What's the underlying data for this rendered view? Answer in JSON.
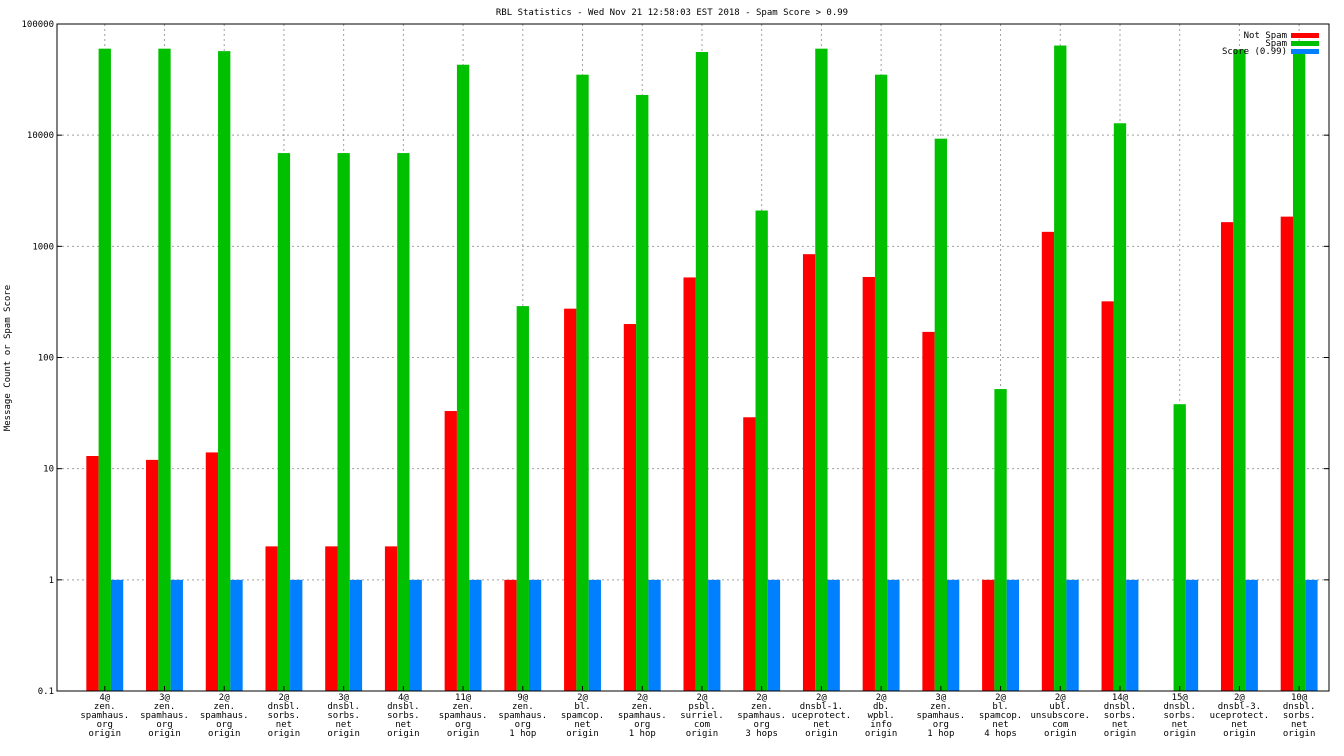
{
  "chart_data": {
    "type": "bar",
    "title": "RBL Statistics - Wed Nov 21 12:58:03 EST 2018 - Spam Score > 0.99",
    "ylabel": "Message Count or Spam Score",
    "xlabel": "",
    "yscale": "log",
    "ylim": [
      0.1,
      100000
    ],
    "y_ticks": [
      {
        "value": 0.1,
        "label": "0.1"
      },
      {
        "value": 1,
        "label": "1"
      },
      {
        "value": 10,
        "label": "10"
      },
      {
        "value": 100,
        "label": "100"
      },
      {
        "value": 1000,
        "label": "1000"
      },
      {
        "value": 10000,
        "label": "10000"
      },
      {
        "value": 100000,
        "label": "100000"
      }
    ],
    "grid": true,
    "legend_position": "top-right",
    "categories": [
      [
        "4@",
        "zen.",
        "spamhaus.",
        "org",
        "origin"
      ],
      [
        "3@",
        "zen.",
        "spamhaus.",
        "org",
        "origin"
      ],
      [
        "2@",
        "zen.",
        "spamhaus.",
        "org",
        "origin"
      ],
      [
        "2@",
        "dnsbl.",
        "sorbs.",
        "net",
        "origin"
      ],
      [
        "3@",
        "dnsbl.",
        "sorbs.",
        "net",
        "origin"
      ],
      [
        "4@",
        "dnsbl.",
        "sorbs.",
        "net",
        "origin"
      ],
      [
        "11@",
        "zen.",
        "spamhaus.",
        "org",
        "origin"
      ],
      [
        "9@",
        "zen.",
        "spamhaus.",
        "org",
        "1 hop"
      ],
      [
        "2@",
        "bl.",
        "spamcop.",
        "net",
        "origin"
      ],
      [
        "2@",
        "zen.",
        "spamhaus.",
        "org",
        "1 hop"
      ],
      [
        "2@",
        "psbl.",
        "surriel.",
        "com",
        "origin"
      ],
      [
        "2@",
        "zen.",
        "spamhaus.",
        "org",
        "3 hops"
      ],
      [
        "2@",
        "dnsbl-1.",
        "uceprotect.",
        "net",
        "origin"
      ],
      [
        "2@",
        "db.",
        "wpbl.",
        "info",
        "origin"
      ],
      [
        "3@",
        "zen.",
        "spamhaus.",
        "org",
        "1 hop"
      ],
      [
        "2@",
        "bl.",
        "spamcop.",
        "net",
        "4 hops"
      ],
      [
        "2@",
        "ubl.",
        "unsubscore.",
        "com",
        "origin"
      ],
      [
        "14@",
        "dnsbl.",
        "sorbs.",
        "net",
        "origin"
      ],
      [
        "15@",
        "dnsbl.",
        "sorbs.",
        "net",
        "origin"
      ],
      [
        "2@",
        "dnsbl-3.",
        "uceprotect.",
        "net",
        "origin"
      ],
      [
        "10@",
        "dnsbl.",
        "sorbs.",
        "net",
        "origin"
      ]
    ],
    "series": [
      {
        "name": "Not Spam",
        "color": "#ff0000",
        "values": [
          13,
          12,
          14,
          2,
          2,
          2,
          33,
          1,
          275,
          200,
          525,
          29,
          850,
          530,
          170,
          1,
          1350,
          320,
          null,
          1650,
          1850
        ]
      },
      {
        "name": "Spam",
        "color": "#00c000",
        "values": [
          60000,
          60000,
          57000,
          6900,
          6900,
          6900,
          43000,
          290,
          35000,
          23000,
          56000,
          2100,
          60000,
          35000,
          9300,
          52,
          64000,
          12800,
          38,
          59000,
          59000
        ]
      },
      {
        "name": "Score (0.99)",
        "color": "#0080ff",
        "values": [
          1,
          1,
          1,
          1,
          1,
          1,
          1,
          1,
          1,
          1,
          1,
          1,
          1,
          1,
          1,
          1,
          1,
          1,
          1,
          1,
          1
        ]
      }
    ]
  }
}
